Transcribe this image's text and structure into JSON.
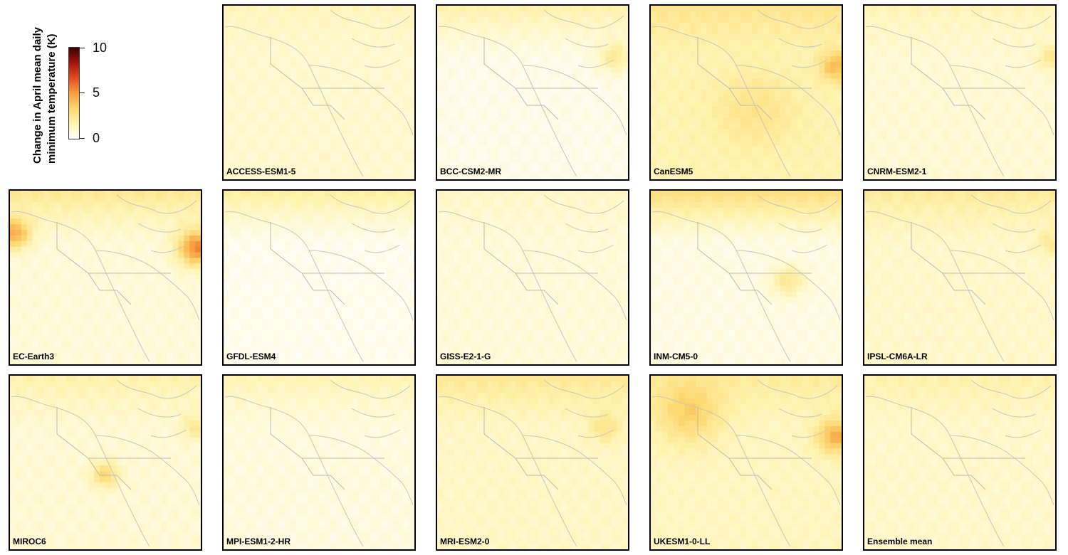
{
  "chart_data": {
    "type": "heatmap",
    "title": "",
    "legend": {
      "title_lines": [
        "Change in April mean daily",
        "minimum temperature (K)"
      ],
      "ticks": [
        10,
        5,
        0
      ],
      "range": [
        0,
        10
      ],
      "colormap": [
        "#ffffff",
        "#fff3b0",
        "#fdd870",
        "#f99d3f",
        "#e44a1f",
        "#a3150d",
        "#3a0000"
      ]
    },
    "panels": [
      {
        "label": "ACCESS-ESM1-5",
        "base": 1.0,
        "north": 1.4,
        "hotspots": []
      },
      {
        "label": "BCC-CSM2-MR",
        "base": 0.5,
        "north": 1.8,
        "hotspots": [
          {
            "u": 0.93,
            "v": 0.3,
            "val": 2.2,
            "r": 0.06
          }
        ]
      },
      {
        "label": "CanESM5",
        "base": 1.6,
        "north": 2.6,
        "hotspots": [
          {
            "u": 0.97,
            "v": 0.35,
            "val": 4.2,
            "r": 0.06
          },
          {
            "u": 0.55,
            "v": 0.6,
            "val": 2.6,
            "r": 0.15
          }
        ]
      },
      {
        "label": "CNRM-ESM2-1",
        "base": 0.9,
        "north": 1.5,
        "hotspots": [
          {
            "u": 0.98,
            "v": 0.3,
            "val": 2.4,
            "r": 0.05
          }
        ]
      },
      {
        "label": "EC-Earth3",
        "base": 0.8,
        "north": 2.4,
        "hotspots": [
          {
            "u": 0.02,
            "v": 0.25,
            "val": 4.5,
            "r": 0.06
          },
          {
            "u": 0.98,
            "v": 0.33,
            "val": 5.5,
            "r": 0.07
          }
        ]
      },
      {
        "label": "GFDL-ESM4",
        "base": 0.4,
        "north": 2.0,
        "hotspots": []
      },
      {
        "label": "GISS-E2-1-G",
        "base": 0.8,
        "north": 1.2,
        "hotspots": []
      },
      {
        "label": "INM-CM5-0",
        "base": 0.6,
        "north": 3.0,
        "hotspots": [
          {
            "u": 0.72,
            "v": 0.52,
            "val": 2.4,
            "r": 0.06
          }
        ]
      },
      {
        "label": "IPSL-CM6A-LR",
        "base": 1.1,
        "north": 2.2,
        "hotspots": [
          {
            "u": 0.98,
            "v": 0.3,
            "val": 2.3,
            "r": 0.05
          }
        ]
      },
      {
        "label": "MIROC6",
        "base": 0.9,
        "north": 1.8,
        "hotspots": [
          {
            "u": 0.5,
            "v": 0.57,
            "val": 3.2,
            "r": 0.05
          },
          {
            "u": 0.97,
            "v": 0.3,
            "val": 2.3,
            "r": 0.05
          }
        ]
      },
      {
        "label": "MPI-ESM1-2-HR",
        "base": 0.7,
        "north": 1.6,
        "hotspots": []
      },
      {
        "label": "MRI-ESM2-0",
        "base": 1.2,
        "north": 2.4,
        "hotspots": [
          {
            "u": 0.88,
            "v": 0.3,
            "val": 2.6,
            "r": 0.06
          }
        ]
      },
      {
        "label": "UKESM1-0-LL",
        "base": 1.3,
        "north": 2.2,
        "hotspots": [
          {
            "u": 0.2,
            "v": 0.22,
            "val": 3.4,
            "r": 0.12
          },
          {
            "u": 0.97,
            "v": 0.35,
            "val": 4.5,
            "r": 0.07
          }
        ]
      },
      {
        "label": "Ensemble mean",
        "base": 1.1,
        "north": 1.8,
        "hotspots": []
      }
    ]
  }
}
